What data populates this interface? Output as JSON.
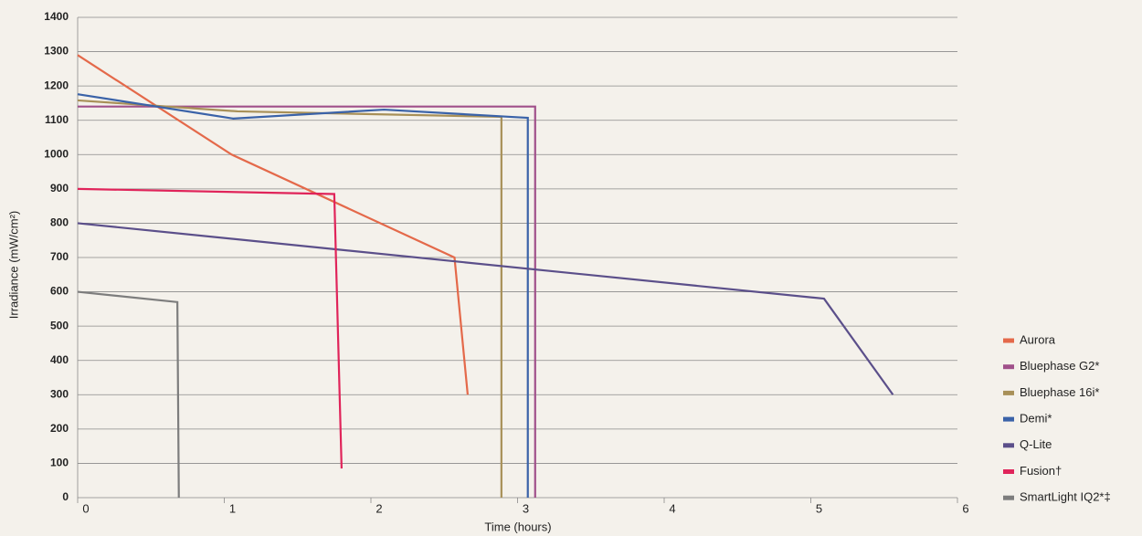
{
  "chart_data": {
    "type": "line",
    "x_label": "Time (hours)",
    "y_label": "Irradiance (mW/cm²)",
    "xlim": [
      0,
      6
    ],
    "xticks": [
      0,
      1,
      2,
      3,
      4,
      5,
      6
    ],
    "ylim": [
      0,
      1400
    ],
    "yticks": [
      0,
      100,
      200,
      300,
      400,
      500,
      600,
      700,
      800,
      900,
      1000,
      1100,
      1200,
      1300,
      1400
    ],
    "grid": true,
    "legend": "right",
    "series": [
      {
        "name": "Aurora",
        "color": "#e4694a",
        "x": [
          0,
          1.05,
          2.57,
          2.66
        ],
        "values": [
          1290,
          1000,
          700,
          300
        ]
      },
      {
        "name": "Bluephase G2*",
        "color": "#a0508a",
        "x": [
          0,
          3.12,
          3.12
        ],
        "values": [
          1140,
          1140,
          0
        ]
      },
      {
        "name": "Bluephase 16i*",
        "color": "#a89058",
        "x": [
          0,
          1.09,
          2.89,
          2.89
        ],
        "values": [
          1158,
          1126,
          1110,
          0
        ]
      },
      {
        "name": "Demi*",
        "color": "#3a62a8",
        "x": [
          0,
          1.06,
          2.09,
          3.07,
          3.07
        ],
        "values": [
          1176,
          1105,
          1131,
          1107,
          0
        ]
      },
      {
        "name": "Q-Lite",
        "color": "#5b4f8a",
        "x": [
          0,
          5.09,
          5.56
        ],
        "values": [
          800,
          580,
          300
        ]
      },
      {
        "name": "Fusion†",
        "color": "#e0245a",
        "x": [
          0,
          1.75,
          1.8
        ],
        "values": [
          900,
          885,
          85
        ]
      },
      {
        "name": "SmartLight IQ2*‡",
        "color": "#7d7d7d",
        "x": [
          0,
          0.68,
          0.69
        ],
        "values": [
          600,
          570,
          0
        ]
      }
    ]
  }
}
